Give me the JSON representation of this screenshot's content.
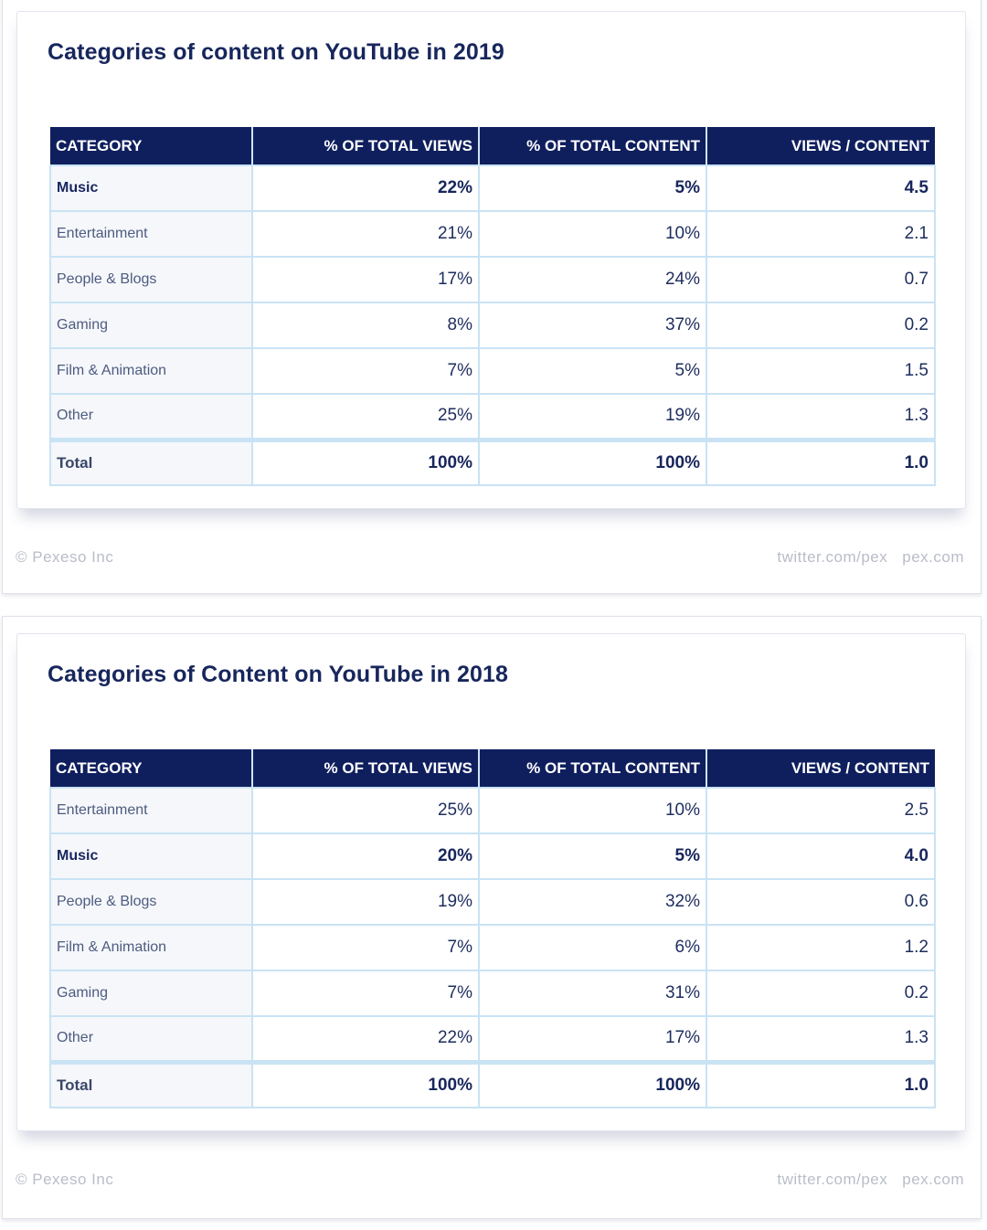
{
  "chart_data": [
    {
      "type": "table",
      "title": "Categories of content on YouTube in 2019",
      "columns": [
        "CATEGORY",
        "% OF TOTAL VIEWS",
        "% OF TOTAL CONTENT",
        "VIEWS / CONTENT"
      ],
      "rows": [
        {
          "category": "Music",
          "views": "22%",
          "content": "5%",
          "ratio": "4.5",
          "emphasis": true
        },
        {
          "category": "Entertainment",
          "views": "21%",
          "content": "10%",
          "ratio": "2.1"
        },
        {
          "category": "People & Blogs",
          "views": "17%",
          "content": "24%",
          "ratio": "0.7"
        },
        {
          "category": "Gaming",
          "views": "8%",
          "content": "37%",
          "ratio": "0.2"
        },
        {
          "category": "Film & Animation",
          "views": "7%",
          "content": "5%",
          "ratio": "1.5"
        },
        {
          "category": "Other",
          "views": "25%",
          "content": "19%",
          "ratio": "1.3"
        }
      ],
      "total": {
        "category": "Total",
        "views": "100%",
        "content": "100%",
        "ratio": "1.0"
      }
    },
    {
      "type": "table",
      "title": "Categories of Content on YouTube in 2018",
      "columns": [
        "CATEGORY",
        "% OF TOTAL VIEWS",
        "% OF TOTAL CONTENT",
        "VIEWS / CONTENT"
      ],
      "rows": [
        {
          "category": "Entertainment",
          "views": "25%",
          "content": "10%",
          "ratio": "2.5"
        },
        {
          "category": "Music",
          "views": "20%",
          "content": "5%",
          "ratio": "4.0",
          "emphasis": true
        },
        {
          "category": "People & Blogs",
          "views": "19%",
          "content": "32%",
          "ratio": "0.6"
        },
        {
          "category": "Film & Animation",
          "views": "7%",
          "content": "6%",
          "ratio": "1.2"
        },
        {
          "category": "Gaming",
          "views": "7%",
          "content": "31%",
          "ratio": "0.2"
        },
        {
          "category": "Other",
          "views": "22%",
          "content": "17%",
          "ratio": "1.3"
        }
      ],
      "total": {
        "category": "Total",
        "views": "100%",
        "content": "100%",
        "ratio": "1.0"
      }
    }
  ],
  "footer": {
    "copyright": "© Pexeso Inc",
    "twitter": "twitter.com/pex",
    "site": "pex.com"
  },
  "colors": {
    "header_bg": "#0f1f5e",
    "title": "#17265c",
    "grid": "#c9e3f4",
    "footer_text": "#b9bdc8"
  }
}
